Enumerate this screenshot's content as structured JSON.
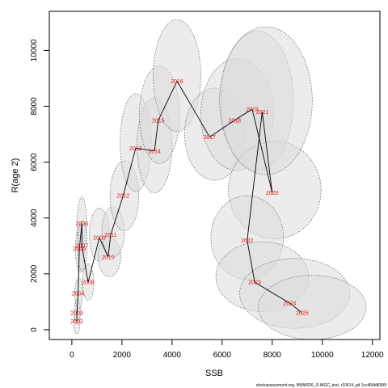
{
  "chart_data": {
    "type": "scatter",
    "title": "",
    "xlabel": "SSB",
    "ylabel": "R(age 2)",
    "xlim": [
      -900,
      12300
    ],
    "ylim": [
      -350,
      11400
    ],
    "xticks": [
      0,
      2000,
      4000,
      6000,
      8000,
      10000,
      12000
    ],
    "yticks": [
      0,
      2000,
      4000,
      6000,
      8000,
      10000
    ],
    "points": [
      {
        "year": "2002",
        "ssb": 200,
        "rec": 300
      },
      {
        "year": "2003",
        "ssb": 200,
        "rec": 600
      },
      {
        "year": "2004",
        "ssb": 250,
        "rec": 1300
      },
      {
        "year": "2005",
        "ssb": 300,
        "rec": 2900
      },
      {
        "year": "2006",
        "ssb": 400,
        "rec": 3800
      },
      {
        "year": "2007",
        "ssb": 400,
        "rec": 3000
      },
      {
        "year": "2008",
        "ssb": 650,
        "rec": 1700
      },
      {
        "year": "2009",
        "ssb": 1100,
        "rec": 3300
      },
      {
        "year": "2010",
        "ssb": 1450,
        "rec": 2600
      },
      {
        "year": "2011",
        "ssb": 1550,
        "rec": 3400
      },
      {
        "year": "2012",
        "ssb": 2050,
        "rec": 4800
      },
      {
        "year": "2013",
        "ssb": 2550,
        "rec": 6500
      },
      {
        "year": "2014",
        "ssb": 3300,
        "rec": 6400
      },
      {
        "year": "2015",
        "ssb": 3450,
        "rec": 7500
      },
      {
        "year": "2016",
        "ssb": 4200,
        "rec": 8900
      },
      {
        "year": "2017",
        "ssb": 5500,
        "rec": 6900
      },
      {
        "year": "2018",
        "ssb": 6500,
        "rec": 7500
      },
      {
        "year": "2019",
        "ssb": 7200,
        "rec": 7900
      },
      {
        "year": "2020",
        "ssb": 8000,
        "rec": 4900
      },
      {
        "year": "2021",
        "ssb": 7600,
        "rec": 7800
      },
      {
        "year": "2022",
        "ssb": 7000,
        "rec": 3200
      },
      {
        "year": "2023",
        "ssb": 7300,
        "rec": 1700
      },
      {
        "year": "2024",
        "ssb": 8700,
        "rec": 950
      },
      {
        "year": "2025",
        "ssb": 9200,
        "rec": 600
      }
    ],
    "ellipses": [
      {
        "year": "2002",
        "ssb": 200,
        "rec": 300,
        "w": 250,
        "h": 900
      },
      {
        "year": "2003",
        "ssb": 220,
        "rec": 650,
        "w": 250,
        "h": 900
      },
      {
        "year": "2004",
        "ssb": 270,
        "rec": 1300,
        "w": 300,
        "h": 1100
      },
      {
        "year": "2005",
        "ssb": 320,
        "rec": 2900,
        "w": 350,
        "h": 1700
      },
      {
        "year": "2006",
        "ssb": 400,
        "rec": 3800,
        "w": 380,
        "h": 1900
      },
      {
        "year": "2007",
        "ssb": 420,
        "rec": 3000,
        "w": 380,
        "h": 1800
      },
      {
        "year": "2008",
        "ssb": 650,
        "rec": 1700,
        "w": 450,
        "h": 1300
      },
      {
        "year": "2009",
        "ssb": 1100,
        "rec": 3400,
        "w": 800,
        "h": 1900
      },
      {
        "year": "2010",
        "ssb": 1500,
        "rec": 2600,
        "w": 900,
        "h": 1400
      },
      {
        "year": "2011",
        "ssb": 1650,
        "rec": 3500,
        "w": 900,
        "h": 1800
      },
      {
        "year": "2012",
        "ssb": 2100,
        "rec": 4800,
        "w": 1150,
        "h": 2500
      },
      {
        "year": "2013",
        "ssb": 2550,
        "rec": 6700,
        "w": 1250,
        "h": 3500
      },
      {
        "year": "2014",
        "ssb": 3300,
        "rec": 6600,
        "w": 1400,
        "h": 3400
      },
      {
        "year": "2015",
        "ssb": 3500,
        "rec": 7700,
        "w": 1600,
        "h": 3500
      },
      {
        "year": "2016",
        "ssb": 4200,
        "rec": 9100,
        "w": 1900,
        "h": 4000
      },
      {
        "year": "2017",
        "ssb": 5700,
        "rec": 7000,
        "w": 2400,
        "h": 3300
      },
      {
        "year": "2018",
        "ssb": 6600,
        "rec": 7700,
        "w": 2900,
        "h": 4000
      },
      {
        "year": "2019",
        "ssb": 7400,
        "rec": 8200,
        "w": 2900,
        "h": 5000
      },
      {
        "year": "2020",
        "ssb": 8100,
        "rec": 5000,
        "w": 3700,
        "h": 3500
      },
      {
        "year": "2021",
        "ssb": 7750,
        "rec": 8200,
        "w": 3700,
        "h": 5300
      },
      {
        "year": "2022",
        "ssb": 7000,
        "rec": 3300,
        "w": 2900,
        "h": 3000
      },
      {
        "year": "2023",
        "ssb": 7600,
        "rec": 1900,
        "w": 3700,
        "h": 2500
      },
      {
        "year": "2024",
        "ssb": 8900,
        "rec": 1300,
        "w": 4400,
        "h": 2500
      },
      {
        "year": "2025",
        "ssb": 9600,
        "rec": 800,
        "w": 4300,
        "h": 2300
      }
    ],
    "ellipse_fill": "#dcdcdc",
    "ellipse_stroke": "#666666",
    "line_color": "#000000",
    "label_color": "#e8141c",
    "grid": false,
    "legend": "none"
  },
  "caption": "stockassessment.org, NWW026_S-WGC_test, r10614_git 1cc464b8086f"
}
